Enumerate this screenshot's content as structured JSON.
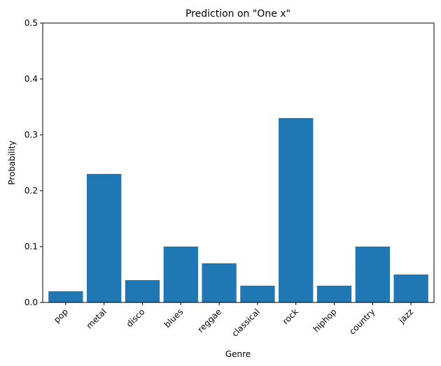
{
  "chart_data": {
    "type": "bar",
    "title": "Prediction on \"One x\"",
    "xlabel": "Genre",
    "ylabel": "Probability",
    "categories": [
      "pop",
      "metal",
      "disco",
      "blues",
      "reggae",
      "classical",
      "rock",
      "hiphop",
      "country",
      "jazz"
    ],
    "values": [
      0.02,
      0.23,
      0.04,
      0.1,
      0.07,
      0.03,
      0.33,
      0.03,
      0.1,
      0.05
    ],
    "ylim": [
      0,
      0.5
    ],
    "yticks": [
      "0.0",
      "0.1",
      "0.2",
      "0.3",
      "0.4",
      "0.5"
    ],
    "bar_color": "#1f77b4",
    "grid": false,
    "legend": "none"
  }
}
